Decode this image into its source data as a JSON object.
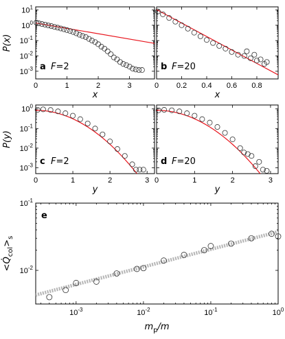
{
  "chart_data": [
    {
      "panel": "a",
      "type": "scatter",
      "annotation": "F=2",
      "xlabel": "x",
      "ylabel": "P(x)",
      "xlim": [
        0,
        3.8
      ],
      "ylim_log10": [
        -3.5,
        1.2
      ],
      "log_y": true,
      "xticks": [
        0,
        1,
        2,
        3
      ],
      "yticks": [
        "10^1",
        "10^0",
        "10^-1",
        "10^-2",
        "10^-3"
      ],
      "points": {
        "x": [
          0.02,
          0.1,
          0.2,
          0.3,
          0.4,
          0.5,
          0.6,
          0.7,
          0.8,
          0.9,
          1.0,
          1.1,
          1.2,
          1.3,
          1.4,
          1.5,
          1.6,
          1.7,
          1.8,
          1.9,
          2.0,
          2.1,
          2.2,
          2.3,
          2.4,
          2.5,
          2.6,
          2.7,
          2.8,
          2.9,
          3.0,
          3.1,
          3.2,
          3.3,
          3.4
        ],
        "y": [
          1.5,
          1.35,
          1.2,
          1.1,
          0.98,
          0.88,
          0.78,
          0.7,
          0.62,
          0.55,
          0.48,
          0.42,
          0.36,
          0.3,
          0.24,
          0.2,
          0.17,
          0.13,
          0.1,
          0.08,
          0.058,
          0.04,
          0.03,
          0.02,
          0.013,
          0.008,
          0.006,
          0.004,
          0.003,
          0.0025,
          0.002,
          0.0015,
          0.0013,
          0.0012,
          0.0012
        ]
      },
      "fit": {
        "x": [
          0,
          3.8
        ],
        "y": [
          1.4,
          0.066
        ]
      }
    },
    {
      "panel": "b",
      "type": "scatter",
      "annotation": "F=20",
      "xlabel": "x",
      "ylabel": "",
      "xlim": [
        0,
        0.97
      ],
      "ylim_log10": [
        -3.5,
        1.2
      ],
      "log_y": true,
      "xticks": [
        0,
        0.2,
        0.4,
        0.6,
        0.8
      ],
      "points": {
        "x": [
          0.01,
          0.05,
          0.1,
          0.15,
          0.2,
          0.25,
          0.3,
          0.35,
          0.4,
          0.45,
          0.5,
          0.55,
          0.6,
          0.65,
          0.7,
          0.72,
          0.75,
          0.78,
          0.8,
          0.83,
          0.86,
          0.88
        ],
        "y": [
          8.0,
          5.2,
          3.0,
          1.7,
          1.0,
          0.6,
          0.33,
          0.19,
          0.11,
          0.07,
          0.045,
          0.03,
          0.018,
          0.012,
          0.01,
          0.02,
          0.007,
          0.012,
          0.005,
          0.006,
          0.003,
          0.004
        ]
      },
      "fit": {
        "x": [
          0,
          0.97
        ],
        "y": [
          10.5,
          0.00058
        ]
      }
    },
    {
      "panel": "c",
      "type": "scatter",
      "annotation": "F=2",
      "xlabel": "y",
      "ylabel": "P(y)",
      "xlim": [
        0,
        3.2
      ],
      "ylim_log10": [
        -3.3,
        0.2
      ],
      "log_y": true,
      "xticks": [
        0,
        1,
        2,
        3
      ],
      "yticks": [
        "10^0",
        "10^-1",
        "10^-2",
        "10^-3"
      ],
      "points": {
        "x": [
          0.05,
          0.2,
          0.4,
          0.6,
          0.8,
          1.0,
          1.2,
          1.4,
          1.6,
          1.8,
          2.0,
          2.2,
          2.4,
          2.6,
          2.7,
          2.8,
          2.9
        ],
        "y": [
          0.9,
          0.95,
          0.88,
          0.75,
          0.6,
          0.45,
          0.3,
          0.18,
          0.1,
          0.05,
          0.022,
          0.009,
          0.004,
          0.0015,
          0.0008,
          0.0008,
          0.0008
        ]
      },
      "fit_curve": "gaussian"
    },
    {
      "panel": "d",
      "type": "scatter",
      "annotation": "F=20",
      "xlabel": "y",
      "ylabel": "",
      "xlim": [
        0,
        3.2
      ],
      "ylim_log10": [
        -3.3,
        0.2
      ],
      "log_y": true,
      "xticks": [
        0,
        1,
        2,
        3
      ],
      "points": {
        "x": [
          0.05,
          0.2,
          0.4,
          0.6,
          0.8,
          1.0,
          1.2,
          1.4,
          1.6,
          1.8,
          2.0,
          2.2,
          2.3,
          2.4,
          2.5,
          2.6,
          2.7,
          2.8,
          2.9
        ],
        "y": [
          0.85,
          0.9,
          0.85,
          0.75,
          0.6,
          0.45,
          0.3,
          0.2,
          0.12,
          0.06,
          0.028,
          0.01,
          0.006,
          0.005,
          0.004,
          0.0012,
          0.002,
          0.0008,
          0.0007
        ]
      },
      "fit_curve": "gaussian"
    },
    {
      "panel": "e",
      "type": "scatter",
      "xlabel": "m_p/m",
      "ylabel": "<Q̇_col>_s",
      "log_x": true,
      "log_y": true,
      "xlim_log10": [
        -3.6,
        0
      ],
      "ylim_log10": [
        -2.5,
        -1
      ],
      "xticks": [
        "10^-3",
        "10^-2",
        "10^-1",
        "10^0"
      ],
      "yticks": [
        "10^-1",
        "10^-2"
      ],
      "points": {
        "x": [
          0.0004,
          0.0007,
          0.001,
          0.002,
          0.004,
          0.008,
          0.01,
          0.02,
          0.04,
          0.08,
          0.1,
          0.2,
          0.4,
          0.8,
          1.0
        ],
        "y": [
          0.004,
          0.0051,
          0.0065,
          0.0068,
          0.009,
          0.0105,
          0.0108,
          0.014,
          0.017,
          0.02,
          0.023,
          0.025,
          0.03,
          0.035,
          0.032
        ]
      },
      "fit": {
        "x": [
          0.00025,
          1.0
        ],
        "y": [
          0.0043,
          0.0375
        ]
      }
    }
  ]
}
